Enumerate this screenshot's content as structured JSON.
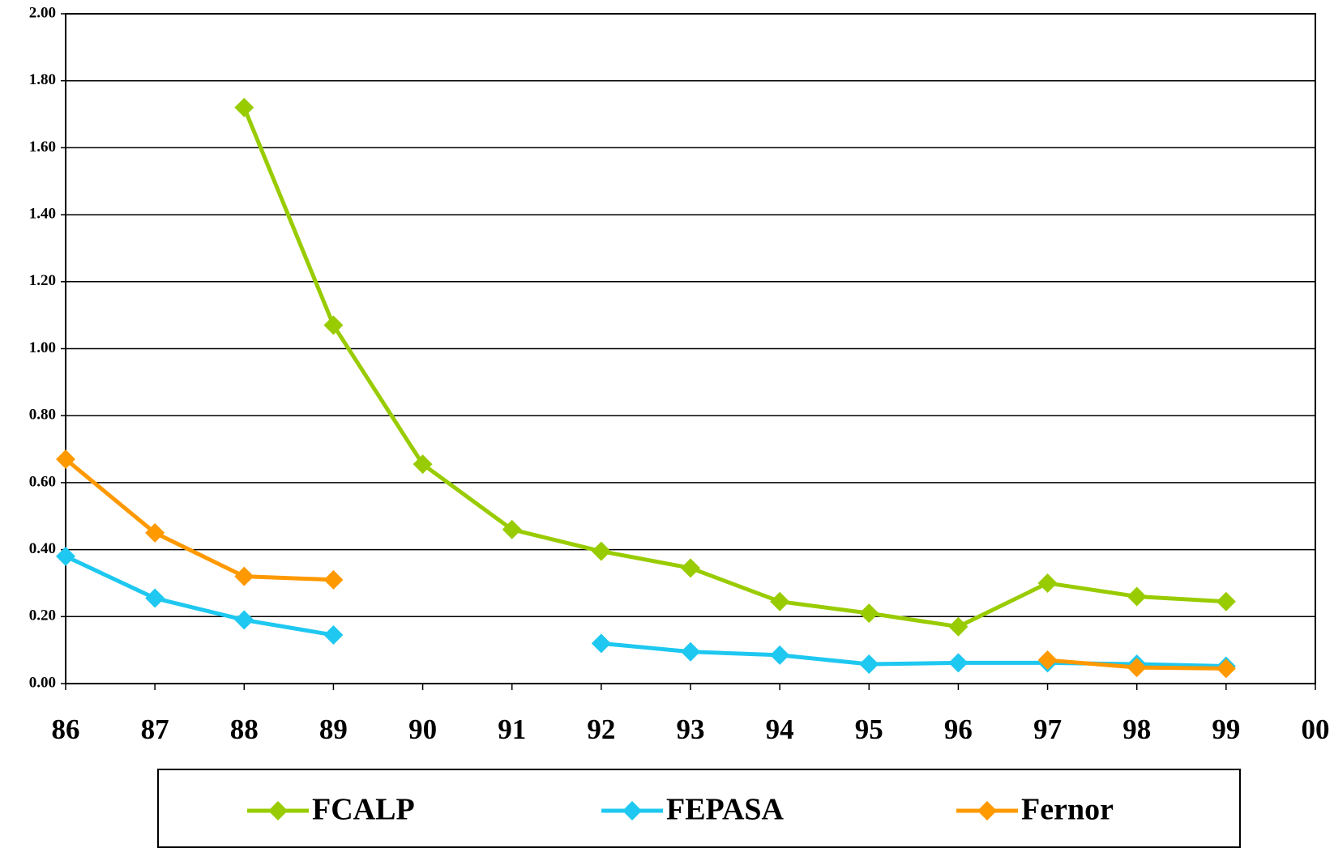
{
  "chart_data": {
    "type": "line",
    "categories": [
      "86",
      "87",
      "88",
      "89",
      "90",
      "91",
      "92",
      "93",
      "94",
      "95",
      "96",
      "97",
      "98",
      "99",
      "00"
    ],
    "series": [
      {
        "name": "FCALP",
        "color": "#99cc00",
        "values": [
          null,
          null,
          1.72,
          1.07,
          0.655,
          0.46,
          0.395,
          0.345,
          0.245,
          0.21,
          0.17,
          0.3,
          0.26,
          0.245,
          null
        ]
      },
      {
        "name": "FEPASA",
        "color": "#1ec8f0",
        "values": [
          0.38,
          0.255,
          0.19,
          0.145,
          null,
          null,
          0.12,
          0.095,
          0.085,
          0.058,
          0.062,
          0.062,
          0.058,
          0.052,
          null
        ]
      },
      {
        "name": "Fernor",
        "color": "#ff9900",
        "values": [
          0.67,
          0.45,
          0.32,
          0.31,
          null,
          null,
          null,
          null,
          null,
          null,
          null,
          0.07,
          0.048,
          0.045,
          null
        ]
      }
    ],
    "ylim": [
      0,
      2
    ],
    "yticks": [
      {
        "value": 0,
        "label": "0.00"
      },
      {
        "value": 0.2,
        "label": "0.20"
      },
      {
        "value": 0.4,
        "label": "0.40"
      },
      {
        "value": 0.6,
        "label": "0.60"
      },
      {
        "value": 0.8,
        "label": "0.80"
      },
      {
        "value": 1,
        "label": "1.00"
      },
      {
        "value": 1.2,
        "label": "1.20"
      },
      {
        "value": 1.4,
        "label": "1.40"
      },
      {
        "value": 1.6,
        "label": "1.60"
      },
      {
        "value": 1.8,
        "label": "1.80"
      },
      {
        "value": 2,
        "label": "2.00"
      }
    ],
    "grid": true,
    "legend": "bottom"
  }
}
